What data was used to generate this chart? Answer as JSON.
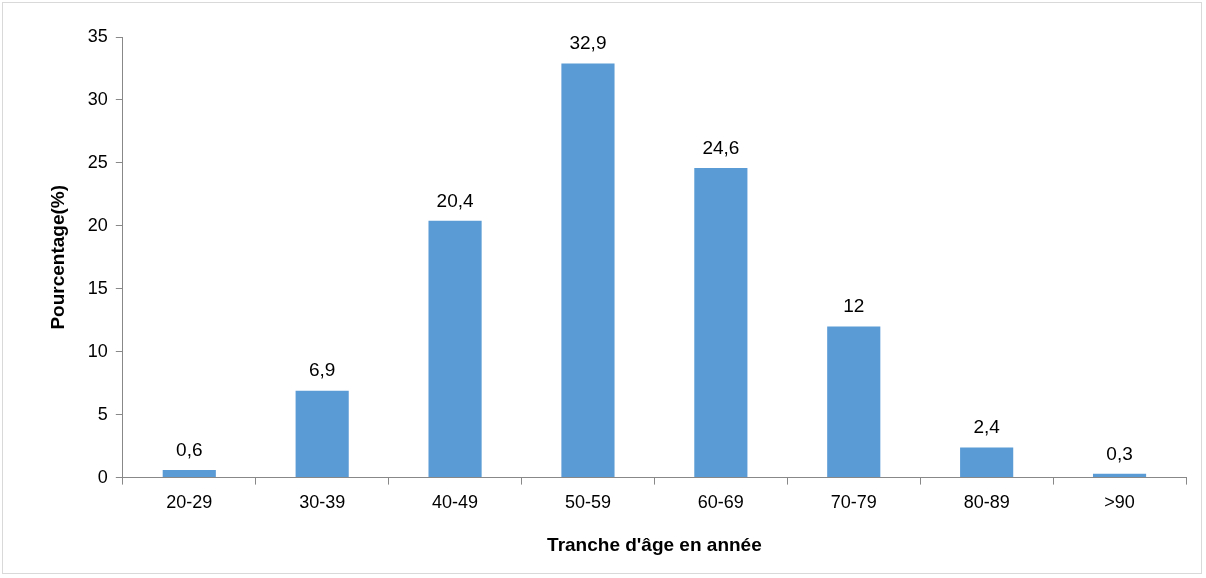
{
  "chart_data": {
    "type": "bar",
    "xlabel": "Tranche d'âge en année",
    "ylabel": "Pourcentage(%)",
    "categories": [
      "20-29",
      "30-39",
      "40-49",
      "50-59",
      "60-69",
      "70-79",
      "80-89",
      ">90"
    ],
    "values": [
      0.6,
      6.9,
      20.4,
      32.9,
      24.6,
      12,
      2.4,
      0.3
    ],
    "value_labels": [
      "0,6",
      "6,9",
      "20,4",
      "32,9",
      "24,6",
      "12",
      "2,4",
      "0,3"
    ],
    "color": "#5b9bd5",
    "ylim": [
      0,
      35
    ],
    "yticks": [
      0,
      5,
      10,
      15,
      20,
      25,
      30,
      35
    ],
    "grid": false,
    "legend": false
  }
}
